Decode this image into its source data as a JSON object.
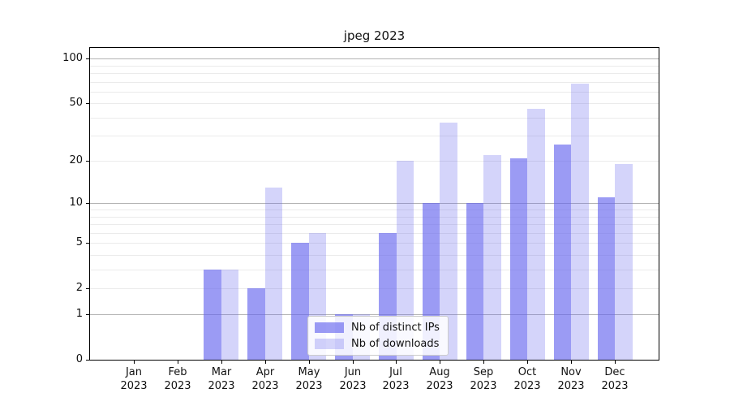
{
  "chart_data": {
    "type": "bar",
    "title": "jpeg 2023",
    "categories": [
      "Jan 2023",
      "Feb 2023",
      "Mar 2023",
      "Apr 2023",
      "May 2023",
      "Jun 2023",
      "Jul 2023",
      "Aug 2023",
      "Sep 2023",
      "Oct 2023",
      "Nov 2023",
      "Dec 2023"
    ],
    "series": [
      {
        "name": "Nb of distinct IPs",
        "color": "rgba(102,102,238,0.65)",
        "values": [
          0,
          0,
          3,
          2,
          5,
          1,
          6,
          10,
          10,
          21,
          26,
          11
        ]
      },
      {
        "name": "Nb of downloads",
        "color": "rgba(102,102,238,0.28)",
        "values": [
          0,
          0,
          3,
          13,
          6,
          1,
          20,
          37,
          22,
          46,
          68,
          19
        ]
      }
    ],
    "xlabel": "",
    "ylabel": "",
    "y_axis": {
      "scale": "log1p",
      "tick_labels": [
        "0",
        "1",
        "2",
        "5",
        "10",
        "20",
        "50",
        "100"
      ],
      "tick_values": [
        0,
        1,
        2,
        5,
        10,
        20,
        50,
        100
      ],
      "major_gridlines": [
        1,
        10,
        100
      ],
      "minor_gridlines": [
        2,
        3,
        4,
        5,
        6,
        7,
        8,
        9,
        20,
        30,
        40,
        50,
        60,
        70,
        80,
        90
      ],
      "ylim": [
        0,
        119
      ]
    },
    "legend_position": "lower-center",
    "grid": true,
    "colors": {
      "major_grid": "#b3b3b3",
      "minor_grid": "#ebebeb",
      "axis": "#000000",
      "text": "#111111"
    }
  }
}
